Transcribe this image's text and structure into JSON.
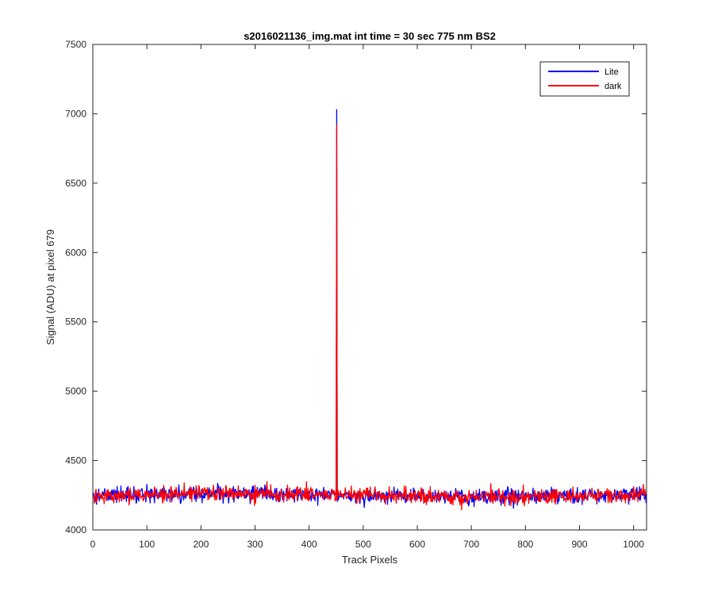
{
  "chart_data": {
    "type": "line",
    "title": "s2016021136_img.mat int time = 30 sec  775 nm BS2",
    "xlabel": "Track Pixels",
    "ylabel": "Signal (ADU) at pixel 679",
    "xlim": [
      0,
      1024
    ],
    "ylim": [
      4000,
      7500
    ],
    "xticks": [
      0,
      100,
      200,
      300,
      400,
      500,
      600,
      700,
      800,
      900,
      1000
    ],
    "yticks": [
      4000,
      4500,
      5000,
      5500,
      6000,
      6500,
      7000,
      7500
    ],
    "grid": false,
    "legend_position": "top-right",
    "series": [
      {
        "name": "Lite",
        "color": "#0000ff",
        "baseline": 4250,
        "noise_amplitude": 50,
        "spike": {
          "x": 451,
          "y": 7030
        },
        "x_range": [
          1,
          1024
        ]
      },
      {
        "name": "dark",
        "color": "#ff0000",
        "baseline": 4250,
        "noise_amplitude": 50,
        "spike": {
          "x": 451,
          "y": 6920
        },
        "x_range": [
          1,
          1024
        ]
      }
    ]
  }
}
